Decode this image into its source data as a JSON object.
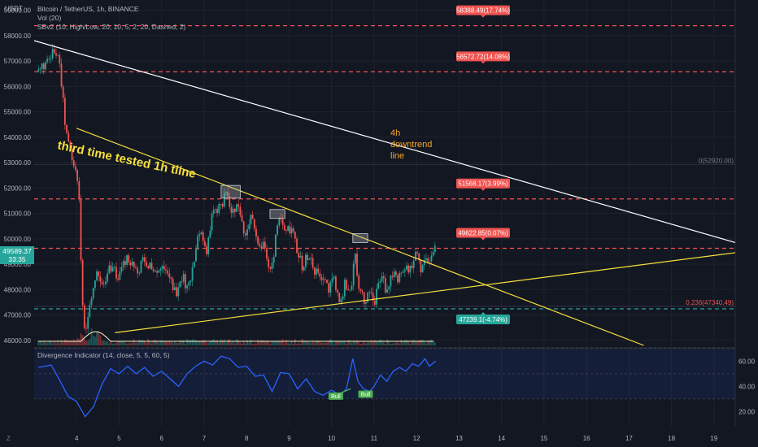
{
  "currency": "USDT",
  "legend": {
    "title": "Bitcoin / TetherUS, 1h, BINANCE",
    "vol": "Vol (20)",
    "sbv2": "SBv2 (10, High/Low, 20, 10, 5, 2, 20, Dashed, 2)"
  },
  "oscillator_title": "Divergence Indicator (14, close, 5, 5, 60, 5)",
  "last_price": "49589.37",
  "countdown": "33:35",
  "z_label": "Z",
  "colors": {
    "background": "#131722",
    "up": "#26a69a",
    "down": "#ef5350",
    "trendline_1h": "#f7e03c",
    "trendline_4h": "#ffffff",
    "annotation_4h": "#f5a623",
    "rsi": "#2962ff",
    "volume_ma": "#fff2c6"
  },
  "annotations": {
    "tline_text": "third time tested 1h tline",
    "downtrend_text": "4h\ndowntrend\nline"
  },
  "chart_data": {
    "type": "candlestick",
    "symbol": "Bitcoin / TetherUS",
    "interval": "1h",
    "exchange": "BINANCE",
    "ylim": [
      45800,
      59400
    ],
    "y_ticks": [
      46000,
      47000,
      48000,
      49000,
      50000,
      51000,
      52000,
      53000,
      54000,
      55000,
      56000,
      57000,
      58000,
      59000
    ],
    "y_tick_labels": [
      "46000.00",
      "47000.00",
      "48000.00",
      "49000.00",
      "50000.00",
      "51000.00",
      "52000.00",
      "53000.00",
      "54000.00",
      "55000.00",
      "56000.00",
      "57000.00",
      "58000.00",
      "59000.00"
    ],
    "x_day_range": [
      3,
      19.5
    ],
    "x_ticks": [
      4,
      5,
      6,
      7,
      8,
      9,
      10,
      11,
      12,
      13,
      14,
      15,
      16,
      17,
      18,
      19
    ],
    "x_tick_labels": [
      "4",
      "5",
      "6",
      "7",
      "8",
      "9",
      "10",
      "11",
      "12",
      "13",
      "14",
      "15",
      "16",
      "17",
      "18",
      "19"
    ],
    "close_path": [
      [
        3.1,
        56600
      ],
      [
        3.35,
        57000
      ],
      [
        3.5,
        57500
      ],
      [
        3.6,
        56800
      ],
      [
        3.75,
        54200
      ],
      [
        3.9,
        53000
      ],
      [
        4.05,
        52200
      ],
      [
        4.12,
        48000
      ],
      [
        4.2,
        46300
      ],
      [
        4.3,
        47200
      ],
      [
        4.45,
        48700
      ],
      [
        4.6,
        48100
      ],
      [
        4.8,
        48900
      ],
      [
        5.0,
        48500
      ],
      [
        5.2,
        49300
      ],
      [
        5.45,
        48800
      ],
      [
        5.6,
        49200
      ],
      [
        5.85,
        48700
      ],
      [
        6.0,
        49000
      ],
      [
        6.15,
        48400
      ],
      [
        6.35,
        47900
      ],
      [
        6.5,
        48600
      ],
      [
        6.6,
        48000
      ],
      [
        6.75,
        48900
      ],
      [
        6.9,
        50400
      ],
      [
        7.05,
        49500
      ],
      [
        7.2,
        51100
      ],
      [
        7.4,
        51200
      ],
      [
        7.5,
        51700
      ],
      [
        7.65,
        51100
      ],
      [
        7.8,
        51300
      ],
      [
        7.95,
        50200
      ],
      [
        8.1,
        50800
      ],
      [
        8.25,
        50000
      ],
      [
        8.45,
        49600
      ],
      [
        8.55,
        48800
      ],
      [
        8.65,
        49500
      ],
      [
        8.75,
        50900
      ],
      [
        8.9,
        50500
      ],
      [
        9.1,
        50200
      ],
      [
        9.3,
        48900
      ],
      [
        9.45,
        49400
      ],
      [
        9.6,
        48800
      ],
      [
        9.8,
        48300
      ],
      [
        9.95,
        47900
      ],
      [
        10.05,
        48600
      ],
      [
        10.2,
        47400
      ],
      [
        10.3,
        48200
      ],
      [
        10.45,
        47900
      ],
      [
        10.55,
        49800
      ],
      [
        10.62,
        48200
      ],
      [
        10.75,
        47600
      ],
      [
        10.9,
        47800
      ],
      [
        11.0,
        47400
      ],
      [
        11.08,
        48300
      ],
      [
        11.2,
        48600
      ],
      [
        11.3,
        47800
      ],
      [
        11.45,
        48700
      ],
      [
        11.55,
        48400
      ],
      [
        11.7,
        49000
      ],
      [
        11.85,
        48800
      ],
      [
        12.0,
        49400
      ],
      [
        12.1,
        48900
      ],
      [
        12.2,
        49300
      ],
      [
        12.3,
        49000
      ],
      [
        12.45,
        49600
      ]
    ],
    "resistance_levels": [
      {
        "price": 58388.49,
        "label": "58388.49(17.74%)",
        "color": "#ef5350"
      },
      {
        "price": 56572.72,
        "label": "56572.72(14.08%)",
        "color": "#ef5350"
      },
      {
        "price": 51568.17,
        "label": "51568.17(3.99%)",
        "color": "#ef5350"
      },
      {
        "price": 49622.85,
        "label": "49622.85(0.07%)",
        "color": "#ef5350"
      }
    ],
    "support_levels": [
      {
        "price": 47239.1,
        "label": "47239.1(-4.74%)",
        "color": "#26a69a"
      }
    ],
    "fib_levels": [
      {
        "price": 52920,
        "label": "0(52920.00)"
      },
      {
        "price": 47340.49,
        "label": "0.236(47340.49)"
      }
    ],
    "trendlines": [
      {
        "name": "1h downtrend",
        "from": [
          4.0,
          54350
        ],
        "to": [
          17.35,
          45800
        ]
      },
      {
        "name": "1h uptrend",
        "from": [
          4.9,
          46300
        ],
        "to": [
          19.5,
          49450
        ]
      },
      {
        "name": "4h downtrend",
        "from": [
          3.0,
          57800
        ],
        "to": [
          19.5,
          49850
        ]
      }
    ],
    "test_boxes": [
      {
        "x": [
          7.4,
          7.85
        ],
        "y": [
          51600,
          52100
        ]
      },
      {
        "x": [
          8.55,
          8.9
        ],
        "y": [
          50800,
          51150
        ]
      },
      {
        "x": [
          10.5,
          10.85
        ],
        "y": [
          49850,
          50200
        ]
      }
    ],
    "oscillator": {
      "ylim": [
        8,
        68
      ],
      "y_ticks": [
        20,
        40,
        60
      ],
      "y_tick_labels": [
        "20.00",
        "40.00",
        "60.00"
      ],
      "band": [
        30,
        70
      ],
      "midline": 50,
      "path": [
        [
          3.1,
          55
        ],
        [
          3.4,
          57
        ],
        [
          3.6,
          45
        ],
        [
          3.8,
          32
        ],
        [
          4.0,
          28
        ],
        [
          4.2,
          16
        ],
        [
          4.4,
          24
        ],
        [
          4.6,
          42
        ],
        [
          4.8,
          54
        ],
        [
          5.0,
          50
        ],
        [
          5.2,
          56
        ],
        [
          5.4,
          50
        ],
        [
          5.6,
          55
        ],
        [
          5.8,
          48
        ],
        [
          6.0,
          52
        ],
        [
          6.2,
          46
        ],
        [
          6.4,
          40
        ],
        [
          6.6,
          50
        ],
        [
          6.8,
          56
        ],
        [
          7.0,
          60
        ],
        [
          7.2,
          57
        ],
        [
          7.4,
          64
        ],
        [
          7.6,
          62
        ],
        [
          7.8,
          55
        ],
        [
          8.0,
          56
        ],
        [
          8.2,
          48
        ],
        [
          8.4,
          49
        ],
        [
          8.6,
          36
        ],
        [
          8.8,
          51
        ],
        [
          9.0,
          50
        ],
        [
          9.2,
          38
        ],
        [
          9.4,
          46
        ],
        [
          9.6,
          36
        ],
        [
          9.8,
          33
        ],
        [
          10.0,
          37
        ],
        [
          10.2,
          33
        ],
        [
          10.35,
          38
        ],
        [
          10.5,
          62
        ],
        [
          10.62,
          44
        ],
        [
          10.75,
          38
        ],
        [
          10.9,
          36
        ],
        [
          11.0,
          40
        ],
        [
          11.15,
          49
        ],
        [
          11.3,
          44
        ],
        [
          11.45,
          52
        ],
        [
          11.6,
          55
        ],
        [
          11.75,
          52
        ],
        [
          11.9,
          58
        ],
        [
          12.05,
          56
        ],
        [
          12.2,
          62
        ],
        [
          12.3,
          56
        ],
        [
          12.45,
          60
        ]
      ],
      "bull_labels": [
        {
          "x": 10.1,
          "value": 36.5,
          "text": "Bull"
        },
        {
          "x": 10.8,
          "value": 38,
          "text": "Bull"
        }
      ],
      "divergence_line": {
        "from": [
          10.0,
          32
        ],
        "to": [
          10.45,
          38
        ]
      }
    }
  }
}
